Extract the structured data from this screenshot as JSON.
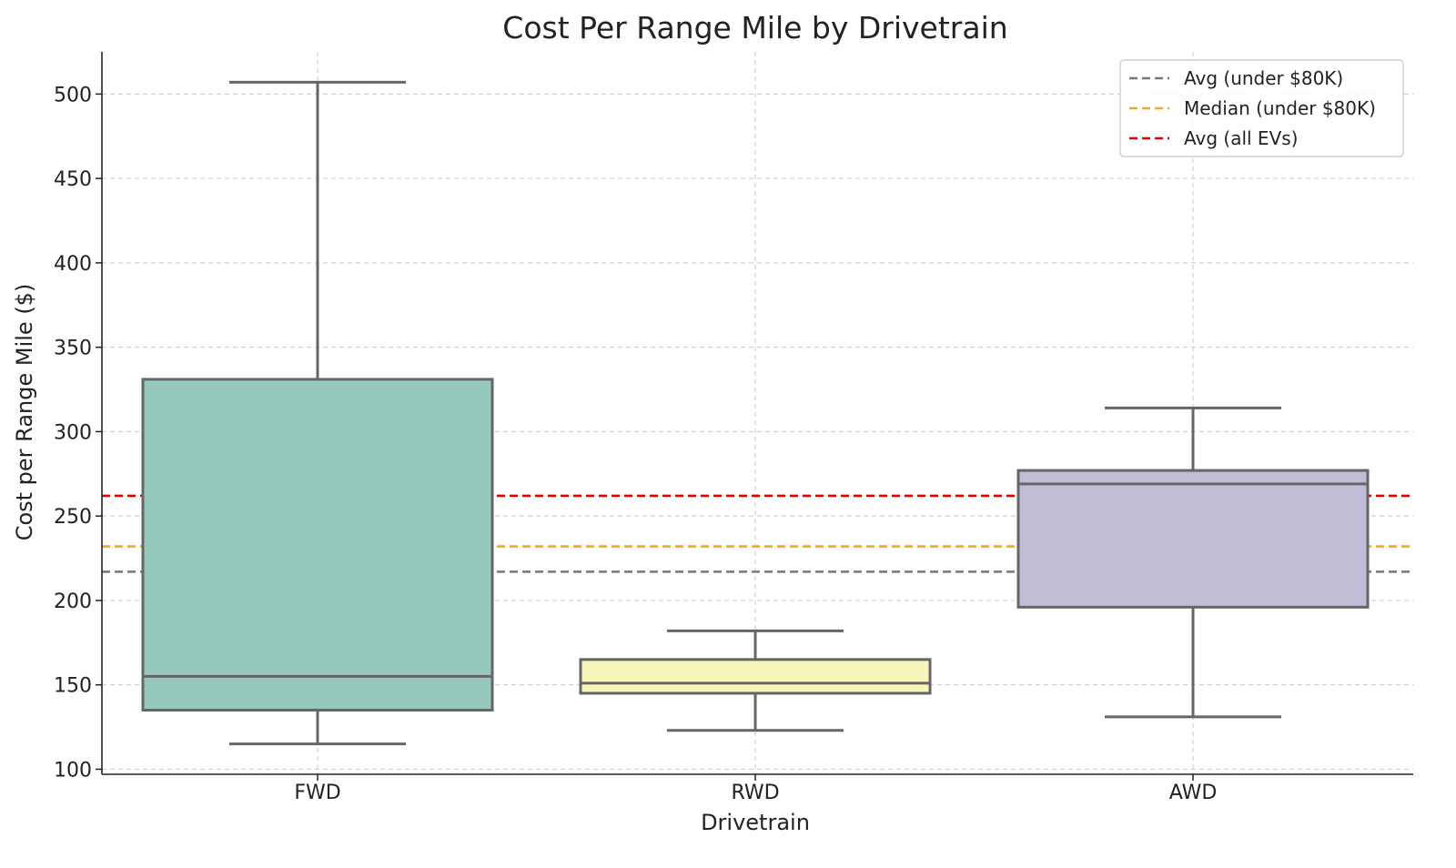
{
  "chart_data": {
    "type": "box",
    "title": "Cost Per Range Mile by Drivetrain",
    "xlabel": "Drivetrain",
    "ylabel": "Cost per Range Mile ($)",
    "ylim": [
      97,
      525
    ],
    "yticks": [
      100,
      150,
      200,
      250,
      300,
      350,
      400,
      450,
      500
    ],
    "grid": true,
    "legend_position": "top-right",
    "categories": [
      "FWD",
      "RWD",
      "AWD"
    ],
    "boxes": [
      {
        "category": "FWD",
        "whisker_low": 115,
        "q1": 135,
        "median": 155,
        "q3": 331,
        "whisker_high": 507,
        "color": "#96c8be"
      },
      {
        "category": "RWD",
        "whisker_low": 123,
        "q1": 145,
        "median": 151,
        "q3": 165,
        "whisker_high": 182,
        "color": "#f6f6bb"
      },
      {
        "category": "AWD",
        "whisker_low": 131,
        "q1": 196,
        "median": 269,
        "q3": 277,
        "whisker_high": 314,
        "color": "#c1bdd6"
      }
    ],
    "reference_lines": [
      {
        "name": "Avg (under $80K)",
        "value": 217,
        "color": "#777777"
      },
      {
        "name": "Median (under $80K)",
        "value": 232,
        "color": "#f5a623"
      },
      {
        "name": "Avg (all EVs)",
        "value": 262,
        "color": "#e00000"
      }
    ]
  }
}
